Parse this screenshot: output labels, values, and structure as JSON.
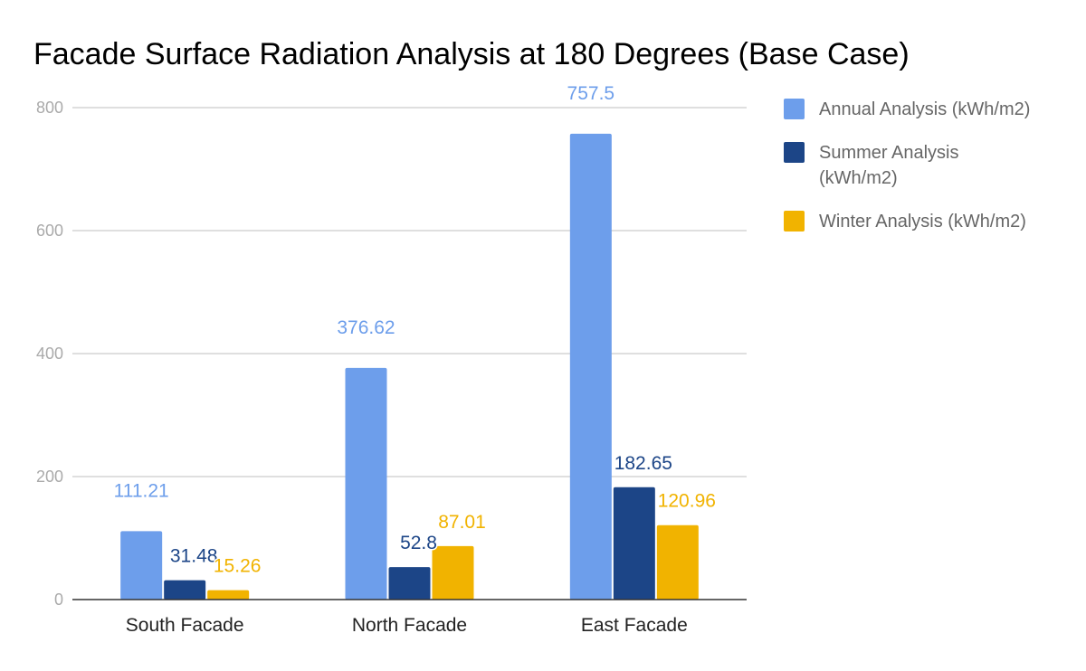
{
  "chart_data": {
    "type": "bar",
    "title": "Facade Surface Radiation Analysis at 180 Degrees (Base Case)",
    "xlabel": "",
    "ylabel": "",
    "categories": [
      "South Facade",
      "North Facade",
      "East Facade"
    ],
    "ylim": [
      0,
      800
    ],
    "yticks": [
      0,
      200,
      400,
      600,
      800
    ],
    "grid": true,
    "legend_position": "right",
    "series": [
      {
        "name": "Annual Analysis (kWh/m2)",
        "color": "#6d9eeb",
        "values": [
          111.21,
          376.62,
          757.5
        ],
        "labels": [
          "111.21",
          "376.62",
          "757.5"
        ]
      },
      {
        "name": "Summer Analysis (kWh/m2)",
        "color": "#1c4587",
        "values": [
          31.48,
          52.8,
          182.65
        ],
        "labels": [
          "31.48",
          "52.8",
          "182.65"
        ]
      },
      {
        "name": "Winter Analysis (kWh/m2)",
        "color": "#f1b300",
        "values": [
          15.26,
          87.01,
          120.96
        ],
        "labels": [
          "15.26",
          "87.01",
          "120.96"
        ]
      }
    ]
  }
}
